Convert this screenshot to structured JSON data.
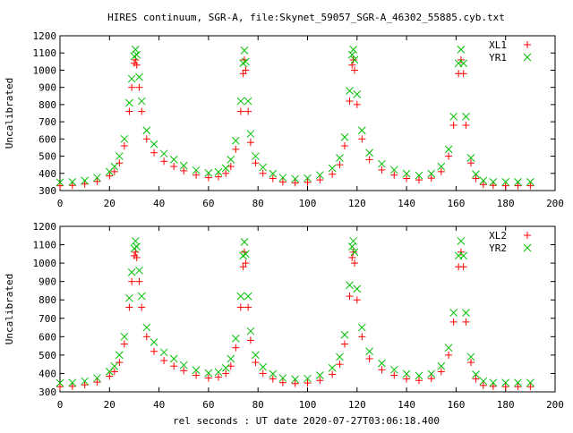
{
  "title": "HIRES continuum, SGR-A, file:Skynet_59057_SGR-A_46302_55885.cyb.txt",
  "xlabel": "rel seconds : UT date 2020-07-27T03:06:18.400",
  "colors": {
    "x_series": "#ff0000",
    "y_series": "#00c000",
    "axes": "#000000"
  },
  "chart_data": [
    {
      "type": "scatter",
      "ylabel": "Uncalibrated",
      "xlim": [
        0,
        200
      ],
      "ylim": [
        300,
        1200
      ],
      "xticks": [
        0,
        20,
        40,
        60,
        80,
        100,
        120,
        140,
        160,
        180,
        200
      ],
      "yticks": [
        300,
        400,
        500,
        600,
        700,
        800,
        900,
        1000,
        1100,
        1200
      ],
      "legend_position": "top-right",
      "series": [
        {
          "name": "XL1",
          "marker": "+",
          "color": "#ff0000",
          "points": [
            [
              0,
              328
            ],
            [
              5,
              330
            ],
            [
              10,
              338
            ],
            [
              15,
              353
            ],
            [
              20,
              385
            ],
            [
              22,
              410
            ],
            [
              24,
              460
            ],
            [
              26,
              560
            ],
            [
              28,
              760
            ],
            [
              29,
              900
            ],
            [
              30,
              1040
            ],
            [
              30.5,
              1060
            ],
            [
              31,
              1030
            ],
            [
              32,
              900
            ],
            [
              33,
              760
            ],
            [
              35,
              600
            ],
            [
              38,
              520
            ],
            [
              42,
              470
            ],
            [
              46,
              440
            ],
            [
              50,
              415
            ],
            [
              55,
              390
            ],
            [
              60,
              375
            ],
            [
              64,
              380
            ],
            [
              67,
              400
            ],
            [
              69,
              440
            ],
            [
              71,
              540
            ],
            [
              73,
              760
            ],
            [
              74,
              980
            ],
            [
              74.5,
              1060
            ],
            [
              75,
              1000
            ],
            [
              76,
              760
            ],
            [
              77,
              580
            ],
            [
              79,
              460
            ],
            [
              82,
              400
            ],
            [
              86,
              370
            ],
            [
              90,
              350
            ],
            [
              95,
              345
            ],
            [
              100,
              348
            ],
            [
              105,
              362
            ],
            [
              110,
              395
            ],
            [
              113,
              450
            ],
            [
              115,
              560
            ],
            [
              117,
              820
            ],
            [
              118,
              1030
            ],
            [
              118.5,
              1060
            ],
            [
              119,
              1000
            ],
            [
              120,
              800
            ],
            [
              122,
              600
            ],
            [
              125,
              480
            ],
            [
              130,
              420
            ],
            [
              135,
              390
            ],
            [
              140,
              370
            ],
            [
              145,
              362
            ],
            [
              150,
              372
            ],
            [
              154,
              410
            ],
            [
              157,
              500
            ],
            [
              159,
              680
            ],
            [
              161,
              980
            ],
            [
              162,
              1060
            ],
            [
              163,
              980
            ],
            [
              164,
              680
            ],
            [
              166,
              460
            ],
            [
              168,
              370
            ],
            [
              171,
              335
            ],
            [
              175,
              330
            ],
            [
              180,
              328
            ],
            [
              185,
              328
            ],
            [
              190,
              328
            ]
          ]
        },
        {
          "name": "YR1",
          "marker": "x",
          "color": "#00c000",
          "points": [
            [
              0,
              348
            ],
            [
              5,
              350
            ],
            [
              10,
              358
            ],
            [
              15,
              375
            ],
            [
              20,
              410
            ],
            [
              22,
              440
            ],
            [
              24,
              500
            ],
            [
              26,
              600
            ],
            [
              28,
              810
            ],
            [
              29,
              950
            ],
            [
              30,
              1080
            ],
            [
              30.5,
              1120
            ],
            [
              31,
              1090
            ],
            [
              32,
              960
            ],
            [
              33,
              820
            ],
            [
              35,
              650
            ],
            [
              38,
              570
            ],
            [
              42,
              515
            ],
            [
              46,
              480
            ],
            [
              50,
              445
            ],
            [
              55,
              418
            ],
            [
              60,
              402
            ],
            [
              64,
              408
            ],
            [
              67,
              430
            ],
            [
              69,
              480
            ],
            [
              71,
              590
            ],
            [
              73,
              820
            ],
            [
              74,
              1040
            ],
            [
              74.5,
              1115
            ],
            [
              75,
              1050
            ],
            [
              76,
              820
            ],
            [
              77,
              630
            ],
            [
              79,
              500
            ],
            [
              82,
              435
            ],
            [
              86,
              398
            ],
            [
              90,
              375
            ],
            [
              95,
              368
            ],
            [
              100,
              372
            ],
            [
              105,
              390
            ],
            [
              110,
              430
            ],
            [
              113,
              490
            ],
            [
              115,
              610
            ],
            [
              117,
              880
            ],
            [
              118,
              1090
            ],
            [
              118.5,
              1120
            ],
            [
              119,
              1060
            ],
            [
              120,
              860
            ],
            [
              122,
              650
            ],
            [
              125,
              520
            ],
            [
              130,
              455
            ],
            [
              135,
              420
            ],
            [
              140,
              398
            ],
            [
              145,
              388
            ],
            [
              150,
              398
            ],
            [
              154,
              440
            ],
            [
              157,
              540
            ],
            [
              159,
              730
            ],
            [
              161,
              1040
            ],
            [
              162,
              1120
            ],
            [
              163,
              1040
            ],
            [
              164,
              730
            ],
            [
              166,
              490
            ],
            [
              168,
              395
            ],
            [
              171,
              358
            ],
            [
              175,
              350
            ],
            [
              180,
              350
            ],
            [
              185,
              350
            ],
            [
              190,
              350
            ]
          ]
        }
      ]
    },
    {
      "type": "scatter",
      "ylabel": "Uncalibrated",
      "xlim": [
        0,
        200
      ],
      "ylim": [
        300,
        1200
      ],
      "xticks": [
        0,
        20,
        40,
        60,
        80,
        100,
        120,
        140,
        160,
        180,
        200
      ],
      "yticks": [
        300,
        400,
        500,
        600,
        700,
        800,
        900,
        1000,
        1100,
        1200
      ],
      "legend_position": "top-right",
      "series": [
        {
          "name": "XL2",
          "marker": "+",
          "color": "#ff0000",
          "points": [
            [
              0,
              328
            ],
            [
              5,
              330
            ],
            [
              10,
              338
            ],
            [
              15,
              353
            ],
            [
              20,
              385
            ],
            [
              22,
              410
            ],
            [
              24,
              460
            ],
            [
              26,
              560
            ],
            [
              28,
              760
            ],
            [
              29,
              900
            ],
            [
              30,
              1040
            ],
            [
              30.5,
              1060
            ],
            [
              31,
              1030
            ],
            [
              32,
              900
            ],
            [
              33,
              760
            ],
            [
              35,
              600
            ],
            [
              38,
              520
            ],
            [
              42,
              470
            ],
            [
              46,
              440
            ],
            [
              50,
              415
            ],
            [
              55,
              390
            ],
            [
              60,
              375
            ],
            [
              64,
              380
            ],
            [
              67,
              400
            ],
            [
              69,
              440
            ],
            [
              71,
              540
            ],
            [
              73,
              760
            ],
            [
              74,
              980
            ],
            [
              74.5,
              1060
            ],
            [
              75,
              1000
            ],
            [
              76,
              760
            ],
            [
              77,
              580
            ],
            [
              79,
              460
            ],
            [
              82,
              400
            ],
            [
              86,
              370
            ],
            [
              90,
              350
            ],
            [
              95,
              345
            ],
            [
              100,
              348
            ],
            [
              105,
              362
            ],
            [
              110,
              395
            ],
            [
              113,
              450
            ],
            [
              115,
              560
            ],
            [
              117,
              820
            ],
            [
              118,
              1030
            ],
            [
              118.5,
              1060
            ],
            [
              119,
              1000
            ],
            [
              120,
              800
            ],
            [
              122,
              600
            ],
            [
              125,
              480
            ],
            [
              130,
              420
            ],
            [
              135,
              390
            ],
            [
              140,
              370
            ],
            [
              145,
              362
            ],
            [
              150,
              372
            ],
            [
              154,
              410
            ],
            [
              157,
              500
            ],
            [
              159,
              680
            ],
            [
              161,
              980
            ],
            [
              162,
              1060
            ],
            [
              163,
              980
            ],
            [
              164,
              680
            ],
            [
              166,
              460
            ],
            [
              168,
              370
            ],
            [
              171,
              335
            ],
            [
              175,
              330
            ],
            [
              180,
              328
            ],
            [
              185,
              328
            ],
            [
              190,
              328
            ]
          ]
        },
        {
          "name": "YR2",
          "marker": "x",
          "color": "#00c000",
          "points": [
            [
              0,
              348
            ],
            [
              5,
              350
            ],
            [
              10,
              358
            ],
            [
              15,
              375
            ],
            [
              20,
              410
            ],
            [
              22,
              440
            ],
            [
              24,
              500
            ],
            [
              26,
              600
            ],
            [
              28,
              810
            ],
            [
              29,
              950
            ],
            [
              30,
              1080
            ],
            [
              30.5,
              1120
            ],
            [
              31,
              1090
            ],
            [
              32,
              960
            ],
            [
              33,
              820
            ],
            [
              35,
              650
            ],
            [
              38,
              570
            ],
            [
              42,
              515
            ],
            [
              46,
              480
            ],
            [
              50,
              445
            ],
            [
              55,
              418
            ],
            [
              60,
              402
            ],
            [
              64,
              408
            ],
            [
              67,
              430
            ],
            [
              69,
              480
            ],
            [
              71,
              590
            ],
            [
              73,
              820
            ],
            [
              74,
              1040
            ],
            [
              74.5,
              1115
            ],
            [
              75,
              1050
            ],
            [
              76,
              820
            ],
            [
              77,
              630
            ],
            [
              79,
              500
            ],
            [
              82,
              435
            ],
            [
              86,
              398
            ],
            [
              90,
              375
            ],
            [
              95,
              368
            ],
            [
              100,
              372
            ],
            [
              105,
              390
            ],
            [
              110,
              430
            ],
            [
              113,
              490
            ],
            [
              115,
              610
            ],
            [
              117,
              880
            ],
            [
              118,
              1090
            ],
            [
              118.5,
              1120
            ],
            [
              119,
              1060
            ],
            [
              120,
              860
            ],
            [
              122,
              650
            ],
            [
              125,
              520
            ],
            [
              130,
              455
            ],
            [
              135,
              420
            ],
            [
              140,
              398
            ],
            [
              145,
              388
            ],
            [
              150,
              398
            ],
            [
              154,
              440
            ],
            [
              157,
              540
            ],
            [
              159,
              730
            ],
            [
              161,
              1040
            ],
            [
              162,
              1120
            ],
            [
              163,
              1040
            ],
            [
              164,
              730
            ],
            [
              166,
              490
            ],
            [
              168,
              395
            ],
            [
              171,
              358
            ],
            [
              175,
              350
            ],
            [
              180,
              350
            ],
            [
              185,
              350
            ],
            [
              190,
              350
            ]
          ]
        }
      ]
    }
  ]
}
